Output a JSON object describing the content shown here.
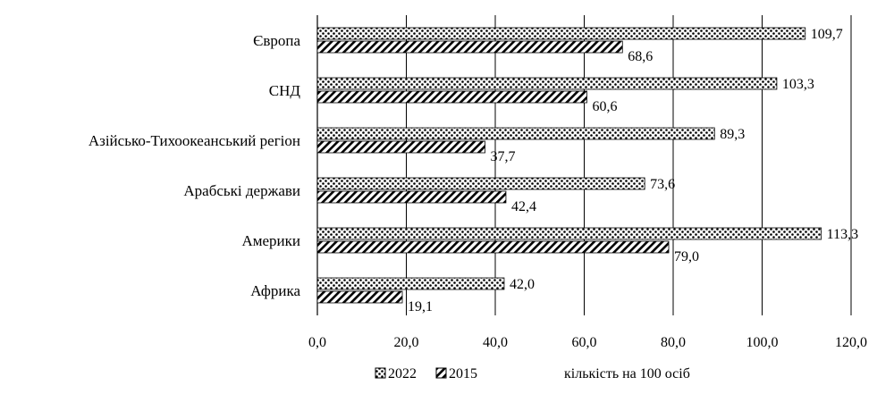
{
  "chart_data": {
    "type": "bar",
    "orientation": "horizontal",
    "categories": [
      "Європа",
      "СНД",
      "Азійсько-Тихоокеанський регіон",
      "Арабські держави",
      "Америки",
      "Африка"
    ],
    "series": [
      {
        "name": "2022",
        "pattern": "dots",
        "values": [
          109.7,
          103.3,
          89.3,
          73.6,
          113.3,
          42.0
        ],
        "labels": [
          "109,7",
          "103,3",
          "89,3",
          "73,6",
          "113,3",
          "42,0"
        ]
      },
      {
        "name": "2015",
        "pattern": "diagonal-hatch",
        "values": [
          68.6,
          60.6,
          37.7,
          42.4,
          79.0,
          19.1
        ],
        "labels": [
          "68,6",
          "60,6",
          "37,7",
          "42,4",
          "79,0",
          "19,1"
        ]
      }
    ],
    "xlim": [
      0,
      120
    ],
    "xticks": [
      0,
      20,
      40,
      60,
      80,
      100,
      120
    ],
    "xtick_labels": [
      "0,0",
      "20,0",
      "40,0",
      "60,0",
      "80,0",
      "100,0",
      "120,0"
    ],
    "axis_note": "кількість на 100 осіб",
    "grid": "vertical",
    "legend_position": "bottom"
  }
}
